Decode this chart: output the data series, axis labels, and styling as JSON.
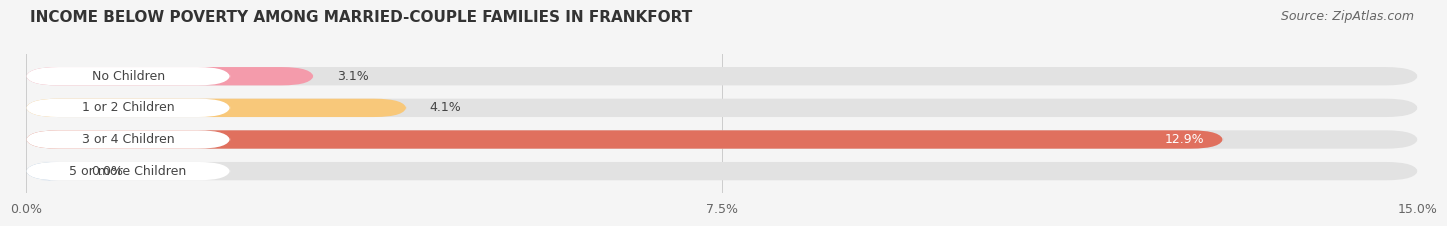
{
  "title": "INCOME BELOW POVERTY AMONG MARRIED-COUPLE FAMILIES IN FRANKFORT",
  "source": "Source: ZipAtlas.com",
  "categories": [
    "No Children",
    "1 or 2 Children",
    "3 or 4 Children",
    "5 or more Children"
  ],
  "values": [
    3.1,
    4.1,
    12.9,
    0.0
  ],
  "bar_colors": [
    "#f49bab",
    "#f8c87a",
    "#e0705e",
    "#a8c4e0"
  ],
  "label_colors": [
    "#333333",
    "#333333",
    "#ffffff",
    "#333333"
  ],
  "xlim": [
    0,
    15.0
  ],
  "xticks": [
    0.0,
    7.5,
    15.0
  ],
  "xticklabels": [
    "0.0%",
    "7.5%",
    "15.0%"
  ],
  "background_color": "#f5f5f5",
  "bar_background_color": "#e2e2e2",
  "title_fontsize": 11,
  "source_fontsize": 9,
  "tick_fontsize": 9,
  "bar_label_fontsize": 9,
  "category_fontsize": 9,
  "bar_height": 0.58,
  "fig_width": 14.06,
  "fig_height": 2.32
}
